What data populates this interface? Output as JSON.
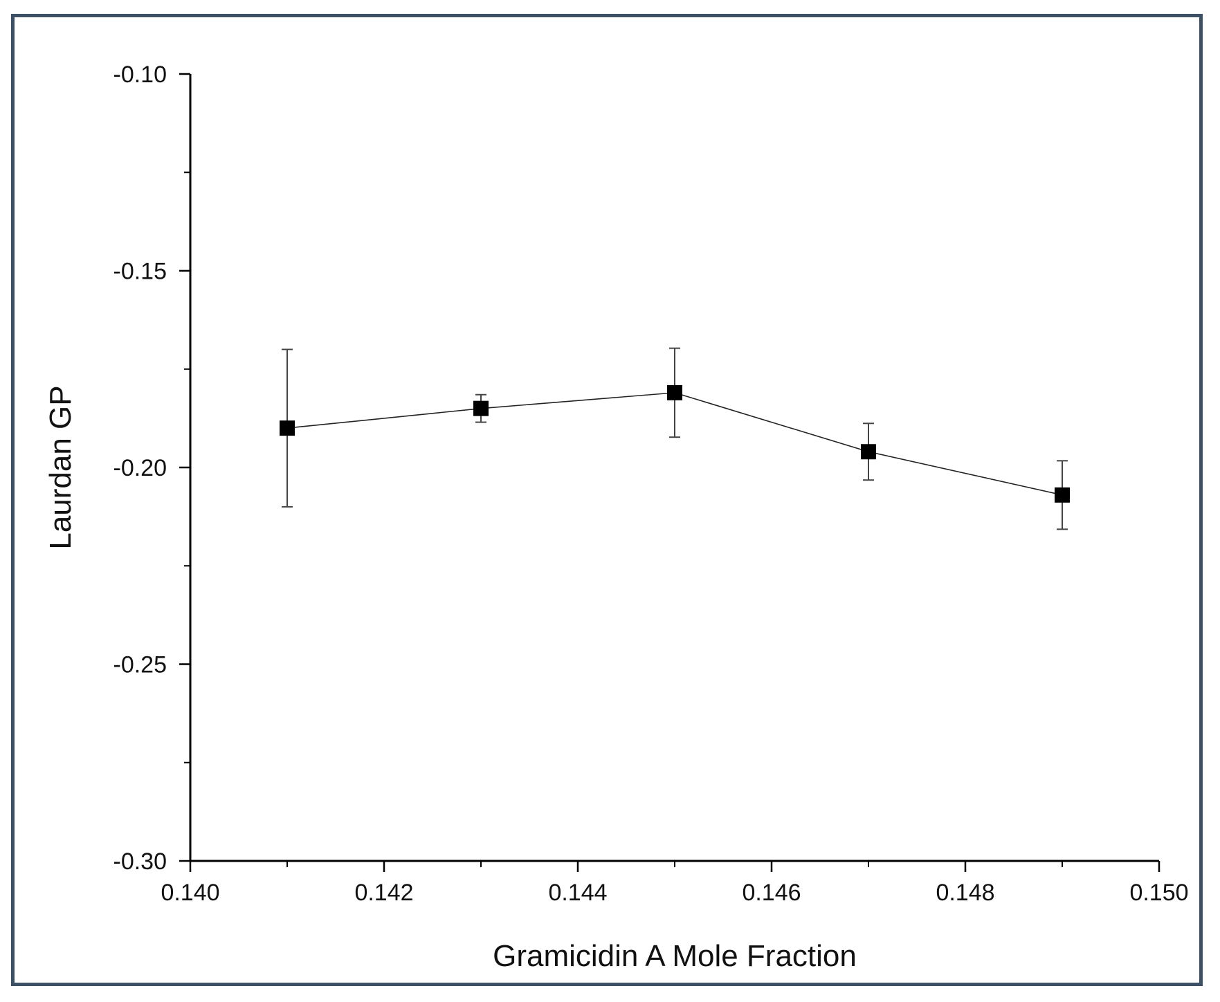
{
  "chart_data": {
    "type": "line",
    "xlabel": "Gramicidin A Mole Fraction",
    "ylabel": "Laurdan GP",
    "xlim": [
      0.14,
      0.15
    ],
    "ylim": [
      -0.3,
      -0.1
    ],
    "x_ticks": [
      "0.140",
      "0.142",
      "0.144",
      "0.146",
      "0.148",
      "0.150"
    ],
    "y_ticks": [
      "-0.10",
      "-0.15",
      "-0.20",
      "-0.25",
      "-0.30"
    ],
    "x_tick_values": [
      0.14,
      0.142,
      0.144,
      0.146,
      0.148,
      0.15
    ],
    "y_tick_values": [
      -0.1,
      -0.15,
      -0.2,
      -0.25,
      -0.3
    ],
    "grid": false,
    "series": [
      {
        "x": [
          0.141,
          0.143,
          0.145,
          0.147,
          0.149
        ],
        "y": [
          -0.19,
          -0.185,
          -0.181,
          -0.196,
          -0.207
        ],
        "error": [
          0.02,
          0.0035,
          0.0113,
          0.0072,
          0.0087
        ],
        "marker": "square",
        "color": "#000000"
      }
    ]
  }
}
